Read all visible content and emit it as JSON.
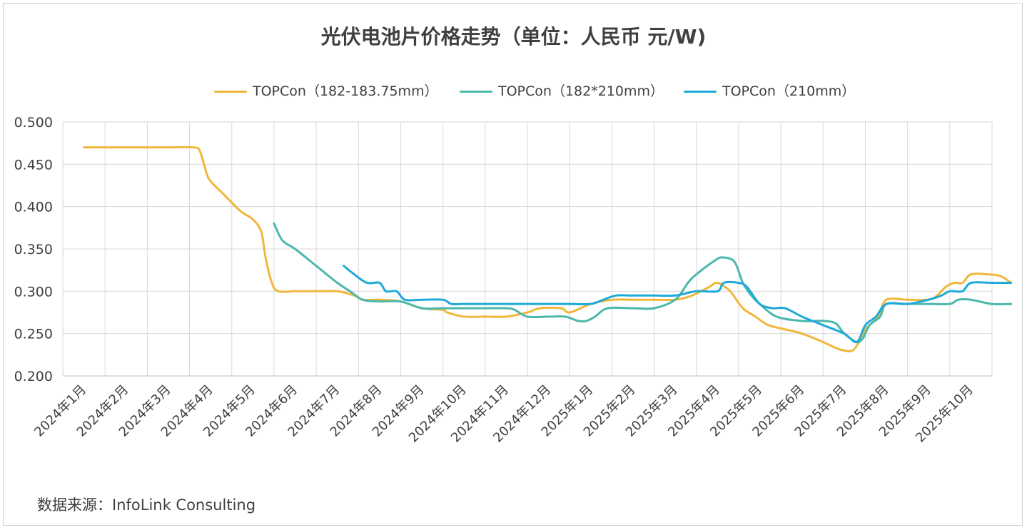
{
  "chart_data": {
    "type": "line",
    "title": "光伏电池片价格走势（单位：人民币 元/W)",
    "ylim": [
      0.2,
      0.5
    ],
    "yticks": [
      "0.500",
      "0.450",
      "0.400",
      "0.350",
      "0.300",
      "0.250",
      "0.200"
    ],
    "x_categories": [
      "2024年1月",
      "2024年2月",
      "2024年3月",
      "2024年4月",
      "2024年5月",
      "2024年6月",
      "2024年7月",
      "2024年8月",
      "2024年9月",
      "2024年10月",
      "2024年11月",
      "2024年12月",
      "2025年1月",
      "2025年2月",
      "2025年3月",
      "2025年4月",
      "2025年5月",
      "2025年6月",
      "2025年7月",
      "2025年8月",
      "2025年9月",
      "2025年10月"
    ],
    "grid": true,
    "legend_position": "top",
    "series": [
      {
        "name": "TOPCon（182-183.75mm）",
        "color": "#F0B73C",
        "points": [
          [
            0,
            0.47
          ],
          [
            1,
            0.47
          ],
          [
            2,
            0.47
          ],
          [
            2.6,
            0.47
          ],
          [
            2.75,
            0.465
          ],
          [
            2.9,
            0.44
          ],
          [
            3,
            0.43
          ],
          [
            3.3,
            0.415
          ],
          [
            3.7,
            0.395
          ],
          [
            4,
            0.385
          ],
          [
            4.2,
            0.37
          ],
          [
            4.3,
            0.34
          ],
          [
            4.45,
            0.31
          ],
          [
            4.6,
            0.3
          ],
          [
            5,
            0.3
          ],
          [
            5.5,
            0.3
          ],
          [
            6,
            0.3
          ],
          [
            6.4,
            0.295
          ],
          [
            6.6,
            0.29
          ],
          [
            7,
            0.29
          ],
          [
            7.5,
            0.288
          ],
          [
            8,
            0.28
          ],
          [
            8.5,
            0.278
          ],
          [
            8.6,
            0.275
          ],
          [
            9,
            0.27
          ],
          [
            9.5,
            0.27
          ],
          [
            10,
            0.27
          ],
          [
            10.5,
            0.275
          ],
          [
            10.8,
            0.28
          ],
          [
            11.3,
            0.28
          ],
          [
            11.5,
            0.275
          ],
          [
            12,
            0.285
          ],
          [
            12.5,
            0.29
          ],
          [
            13,
            0.29
          ],
          [
            13.5,
            0.29
          ],
          [
            14,
            0.29
          ],
          [
            14.4,
            0.295
          ],
          [
            14.8,
            0.305
          ],
          [
            15,
            0.31
          ],
          [
            15.3,
            0.3
          ],
          [
            15.6,
            0.28
          ],
          [
            15.9,
            0.27
          ],
          [
            16.2,
            0.26
          ],
          [
            16.6,
            0.255
          ],
          [
            17,
            0.25
          ],
          [
            17.5,
            0.24
          ],
          [
            17.8,
            0.233
          ],
          [
            18,
            0.23
          ],
          [
            18.2,
            0.23
          ],
          [
            18.35,
            0.24
          ],
          [
            18.5,
            0.255
          ],
          [
            18.8,
            0.27
          ],
          [
            19,
            0.29
          ],
          [
            19.5,
            0.29
          ],
          [
            20,
            0.29
          ],
          [
            20.2,
            0.295
          ],
          [
            20.4,
            0.305
          ],
          [
            20.6,
            0.31
          ],
          [
            20.8,
            0.31
          ],
          [
            21,
            0.32
          ],
          [
            21.4,
            0.32
          ],
          [
            21.7,
            0.318
          ],
          [
            21.95,
            0.31
          ]
        ]
      },
      {
        "name": "TOPCon（182*210mm）",
        "color": "#4CB8AC",
        "points": [
          [
            4.5,
            0.38
          ],
          [
            4.7,
            0.36
          ],
          [
            5,
            0.35
          ],
          [
            5.5,
            0.33
          ],
          [
            6,
            0.31
          ],
          [
            6.3,
            0.3
          ],
          [
            6.6,
            0.29
          ],
          [
            7,
            0.288
          ],
          [
            7.5,
            0.288
          ],
          [
            8,
            0.28
          ],
          [
            8.5,
            0.28
          ],
          [
            9,
            0.28
          ],
          [
            9.5,
            0.28
          ],
          [
            10,
            0.28
          ],
          [
            10.2,
            0.278
          ],
          [
            10.5,
            0.27
          ],
          [
            11,
            0.27
          ],
          [
            11.4,
            0.27
          ],
          [
            11.7,
            0.265
          ],
          [
            11.9,
            0.265
          ],
          [
            12.1,
            0.27
          ],
          [
            12.4,
            0.28
          ],
          [
            13,
            0.28
          ],
          [
            13.5,
            0.28
          ],
          [
            14,
            0.29
          ],
          [
            14.3,
            0.31
          ],
          [
            14.5,
            0.32
          ],
          [
            14.9,
            0.335
          ],
          [
            15.1,
            0.34
          ],
          [
            15.4,
            0.335
          ],
          [
            15.6,
            0.31
          ],
          [
            15.8,
            0.295
          ],
          [
            16,
            0.285
          ],
          [
            16.4,
            0.27
          ],
          [
            17,
            0.265
          ],
          [
            17.5,
            0.265
          ],
          [
            17.8,
            0.262
          ],
          [
            18,
            0.25
          ],
          [
            18.3,
            0.24
          ],
          [
            18.45,
            0.245
          ],
          [
            18.6,
            0.26
          ],
          [
            18.85,
            0.27
          ],
          [
            19,
            0.285
          ],
          [
            19.5,
            0.285
          ],
          [
            20,
            0.285
          ],
          [
            20.5,
            0.285
          ],
          [
            20.7,
            0.29
          ],
          [
            21,
            0.29
          ],
          [
            21.5,
            0.285
          ],
          [
            21.95,
            0.285
          ]
        ]
      },
      {
        "name": "TOPCon（210mm）",
        "color": "#1EAAD8",
        "points": [
          [
            6.15,
            0.33
          ],
          [
            6.4,
            0.32
          ],
          [
            6.7,
            0.31
          ],
          [
            7,
            0.31
          ],
          [
            7.15,
            0.3
          ],
          [
            7.4,
            0.3
          ],
          [
            7.6,
            0.29
          ],
          [
            8,
            0.29
          ],
          [
            8.5,
            0.29
          ],
          [
            8.7,
            0.285
          ],
          [
            9,
            0.285
          ],
          [
            9.5,
            0.285
          ],
          [
            10,
            0.285
          ],
          [
            10.5,
            0.285
          ],
          [
            11,
            0.285
          ],
          [
            11.5,
            0.285
          ],
          [
            12,
            0.285
          ],
          [
            12.3,
            0.29
          ],
          [
            12.6,
            0.295
          ],
          [
            13,
            0.295
          ],
          [
            13.5,
            0.295
          ],
          [
            14,
            0.295
          ],
          [
            14.5,
            0.3
          ],
          [
            15,
            0.3
          ],
          [
            15.15,
            0.31
          ],
          [
            15.5,
            0.31
          ],
          [
            15.7,
            0.305
          ],
          [
            16,
            0.285
          ],
          [
            16.3,
            0.28
          ],
          [
            16.6,
            0.28
          ],
          [
            17,
            0.27
          ],
          [
            17.5,
            0.26
          ],
          [
            18,
            0.25
          ],
          [
            18.3,
            0.24
          ],
          [
            18.5,
            0.26
          ],
          [
            18.75,
            0.27
          ],
          [
            19,
            0.285
          ],
          [
            19.5,
            0.285
          ],
          [
            20,
            0.29
          ],
          [
            20.3,
            0.295
          ],
          [
            20.5,
            0.3
          ],
          [
            20.8,
            0.3
          ],
          [
            21,
            0.31
          ],
          [
            21.5,
            0.31
          ],
          [
            21.95,
            0.31
          ]
        ]
      }
    ]
  },
  "source": "数据来源：InfoLink Consulting"
}
